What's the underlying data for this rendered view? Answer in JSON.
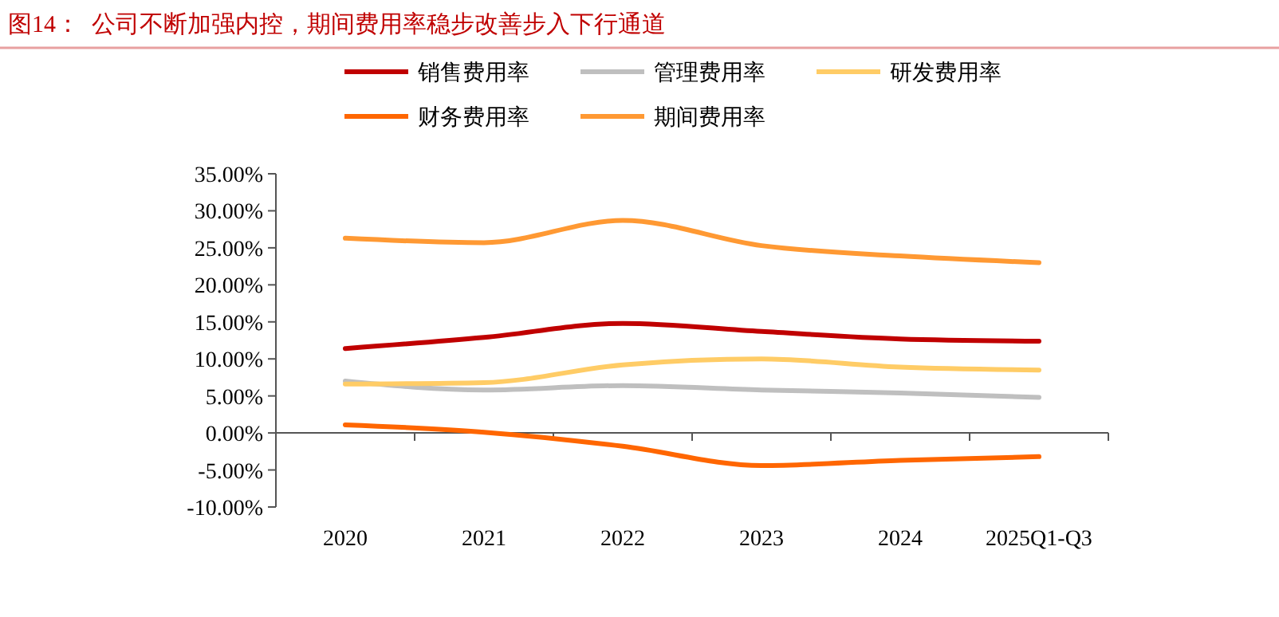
{
  "chart_data": {
    "type": "line",
    "title": "图14：  公司不断加强内控，期间费用率稳步改善步入下行通道",
    "categories": [
      "2020",
      "2021",
      "2022",
      "2023",
      "2024",
      "2025Q1-Q3"
    ],
    "series": [
      {
        "name": "销售费用率",
        "color": "#c00000",
        "values": [
          11.4,
          12.9,
          14.8,
          13.7,
          12.7,
          12.4
        ]
      },
      {
        "name": "管理费用率",
        "color": "#bfbfbf",
        "values": [
          7.0,
          5.8,
          6.4,
          5.8,
          5.4,
          4.8
        ]
      },
      {
        "name": "研发费用率",
        "color": "#ffcc66",
        "values": [
          6.6,
          6.8,
          9.2,
          10.0,
          8.9,
          8.5
        ]
      },
      {
        "name": "财务费用率",
        "color": "#ff6600",
        "values": [
          1.1,
          0.1,
          -1.8,
          -4.4,
          -3.7,
          -3.2
        ]
      },
      {
        "name": "期间费用率",
        "color": "#ff9933",
        "values": [
          26.3,
          25.7,
          28.7,
          25.3,
          23.9,
          23.0
        ]
      }
    ],
    "ylim": [
      -10,
      35
    ],
    "yticks": [
      {
        "value": -10,
        "label": "-10.00%"
      },
      {
        "value": -5,
        "label": "-5.00%"
      },
      {
        "value": 0,
        "label": "0.00%"
      },
      {
        "value": 5,
        "label": "5.00%"
      },
      {
        "value": 10,
        "label": "10.00%"
      },
      {
        "value": 15,
        "label": "15.00%"
      },
      {
        "value": 20,
        "label": "20.00%"
      },
      {
        "value": 25,
        "label": "25.00%"
      },
      {
        "value": 30,
        "label": "30.00%"
      },
      {
        "value": 35,
        "label": "35.00%"
      }
    ],
    "legend": "top",
    "marker": "none",
    "line_style": "solid"
  }
}
